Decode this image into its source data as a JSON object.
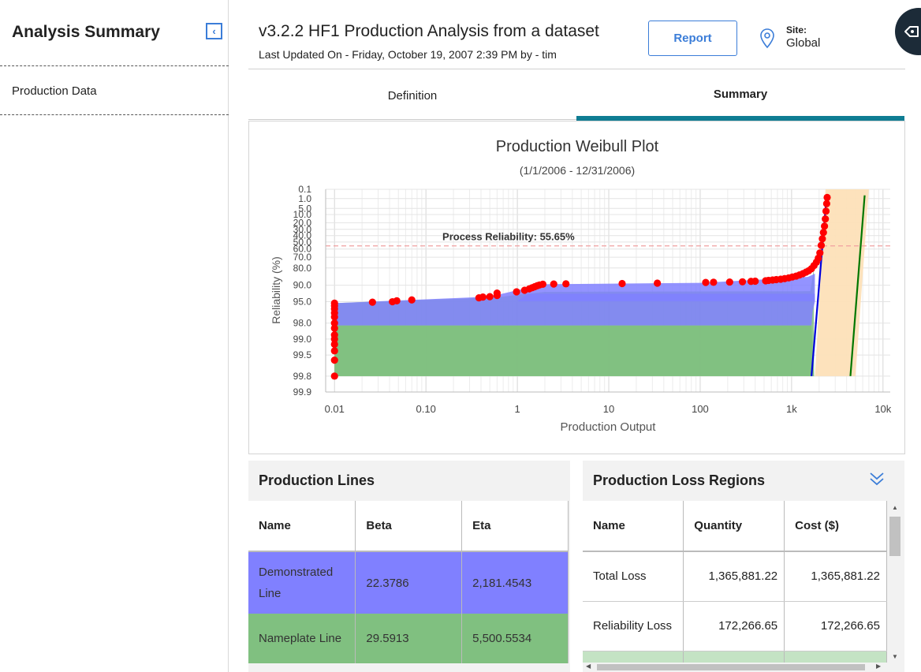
{
  "sidebar": {
    "title": "Analysis Summary",
    "items": [
      {
        "label": "Production Data"
      }
    ]
  },
  "header": {
    "title": "v3.2.2 HF1 Production Analysis from a dataset",
    "subtitle": "Last Updated On - Friday, October 19, 2007 2:39 PM by - tim",
    "report_label": "Report",
    "site_label": "Site:",
    "site_value": "Global"
  },
  "tabs": [
    {
      "label": "Definition",
      "active": false
    },
    {
      "label": "Summary",
      "active": true
    }
  ],
  "colors": {
    "accent": "#0f7d93",
    "link": "#3b7dd8",
    "demonstrated": "#8080ff",
    "nameplate": "#80c080",
    "points": "#ff0000",
    "blue_line": "#0000dd",
    "green_line": "#007700",
    "loss_band": "#fde0b8"
  },
  "chart_data": {
    "type": "scatter",
    "title": "Production Weibull Plot",
    "subtitle": "(1/1/2006 - 12/31/2006)",
    "xlabel": "Production Output",
    "ylabel": "Reliability (%)",
    "x_scale": "log",
    "xlim": [
      0.008,
      12000
    ],
    "x_ticks": [
      {
        "v": 0.01,
        "label": "0.01"
      },
      {
        "v": 0.1,
        "label": "0.10"
      },
      {
        "v": 1,
        "label": "1"
      },
      {
        "v": 10,
        "label": "10"
      },
      {
        "v": 100,
        "label": "100"
      },
      {
        "v": 1000,
        "label": "1k"
      },
      {
        "v": 10000,
        "label": "10k"
      }
    ],
    "y_scale": "weibull",
    "y_ticks": [
      "0.1",
      "1.0",
      "5.0",
      "10.0",
      "20.0",
      "30.0",
      "40.0",
      "50.0",
      "60.0",
      "70.0",
      "80.0",
      "90.0",
      "95.0",
      "98.0",
      "99.0",
      "99.5",
      "99.8",
      "99.9"
    ],
    "annotation": "Process Reliability: 55.65%",
    "process_reliability": 55.65,
    "points": [
      [
        0.01,
        99.8
      ],
      [
        0.01,
        99.6
      ],
      [
        0.01,
        99.4
      ],
      [
        0.01,
        99.2
      ],
      [
        0.01,
        99.0
      ],
      [
        0.01,
        98.8
      ],
      [
        0.01,
        98.4
      ],
      [
        0.01,
        98.0
      ],
      [
        0.01,
        97.4
      ],
      [
        0.01,
        96.9
      ],
      [
        0.01,
        96.3
      ],
      [
        0.01,
        95.8
      ],
      [
        0.01,
        95.3
      ],
      [
        0.026,
        95.1
      ],
      [
        0.043,
        95.0
      ],
      [
        0.048,
        94.8
      ],
      [
        0.07,
        94.6
      ],
      [
        0.38,
        94.1
      ],
      [
        0.42,
        93.9
      ],
      [
        0.5,
        93.8
      ],
      [
        0.6,
        93.5
      ],
      [
        0.6,
        92.8
      ],
      [
        0.98,
        92.4
      ],
      [
        1.2,
        91.9
      ],
      [
        1.35,
        91.4
      ],
      [
        1.45,
        91.0
      ],
      [
        1.55,
        90.6
      ],
      [
        1.65,
        90.2
      ],
      [
        1.75,
        89.9
      ],
      [
        1.9,
        89.6
      ],
      [
        2.5,
        89.5
      ],
      [
        3.4,
        89.4
      ],
      [
        14,
        89.3
      ],
      [
        34,
        89.1
      ],
      [
        115,
        88.8
      ],
      [
        140,
        88.7
      ],
      [
        210,
        88.6
      ],
      [
        290,
        88.5
      ],
      [
        360,
        88.3
      ],
      [
        400,
        88.2
      ],
      [
        520,
        88.0
      ],
      [
        560,
        87.8
      ],
      [
        620,
        87.6
      ],
      [
        680,
        87.4
      ],
      [
        760,
        87.2
      ],
      [
        840,
        86.9
      ],
      [
        930,
        86.5
      ],
      [
        1020,
        86.0
      ],
      [
        1120,
        85.5
      ],
      [
        1220,
        84.8
      ],
      [
        1330,
        84.0
      ],
      [
        1440,
        83.0
      ],
      [
        1540,
        82.0
      ],
      [
        1650,
        80.5
      ],
      [
        1760,
        78.0
      ],
      [
        1870,
        75.0
      ],
      [
        1960,
        71.0
      ],
      [
        2040,
        65.0
      ],
      [
        2110,
        55.0
      ],
      [
        2170,
        45.0
      ],
      [
        2230,
        35.0
      ],
      [
        2290,
        25.0
      ],
      [
        2340,
        15.0
      ],
      [
        2380,
        7.0
      ],
      [
        2420,
        2.5
      ],
      [
        2450,
        0.8
      ]
    ],
    "demonstrated_line": {
      "name": "Demonstrated Line",
      "beta": 22.3786,
      "eta": 2181.4543
    },
    "nameplate_line": {
      "name": "Nameplate Line",
      "beta": 29.5913,
      "eta": 5500.5534
    }
  },
  "production_lines": {
    "title": "Production Lines",
    "columns": [
      "Name",
      "Beta",
      "Eta"
    ],
    "rows": [
      {
        "name": "Demonstrated Line",
        "beta": "22.3786",
        "eta": "2,181.4543"
      },
      {
        "name": "Nameplate Line",
        "beta": "29.5913",
        "eta": "5,500.5534"
      }
    ]
  },
  "loss_regions": {
    "title": "Production Loss Regions",
    "columns": [
      "Name",
      "Quantity",
      "Cost ($)"
    ],
    "rows": [
      {
        "name": "Total Loss",
        "quantity": "1,365,881.22",
        "cost": "1,365,881.22"
      },
      {
        "name": "Reliability Loss",
        "quantity": "172,266.65",
        "cost": "172,266.65"
      }
    ]
  }
}
